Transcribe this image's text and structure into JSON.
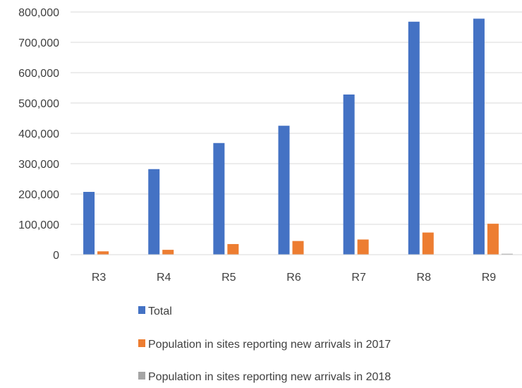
{
  "chart_data": {
    "type": "bar",
    "title": "",
    "xlabel": "",
    "ylabel": "",
    "categories": [
      "R3",
      "R4",
      "R5",
      "R6",
      "R7",
      "R8",
      "R9"
    ],
    "series": [
      {
        "name": "Total",
        "color": "#4472C4",
        "values": [
          207000,
          282000,
          368000,
          425000,
          528000,
          768000,
          778000
        ]
      },
      {
        "name": "Population in sites reporting new arrivals in 2017",
        "color": "#ED7D31",
        "values": [
          11000,
          16000,
          35000,
          45000,
          50000,
          73000,
          102000
        ]
      },
      {
        "name": "Population in sites reporting new arrivals in 2018",
        "color": "#A5A5A5",
        "values": [
          0,
          0,
          0,
          0,
          0,
          0,
          3000
        ]
      }
    ],
    "ylim": [
      0,
      800000
    ],
    "yticks": [
      0,
      100000,
      200000,
      300000,
      400000,
      500000,
      600000,
      700000,
      800000
    ],
    "ytick_labels": [
      "0",
      "100,000",
      "200,000",
      "300,000",
      "400,000",
      "500,000",
      "600,000",
      "700,000",
      "800,000"
    ],
    "grid": true,
    "legend_position": "bottom"
  }
}
